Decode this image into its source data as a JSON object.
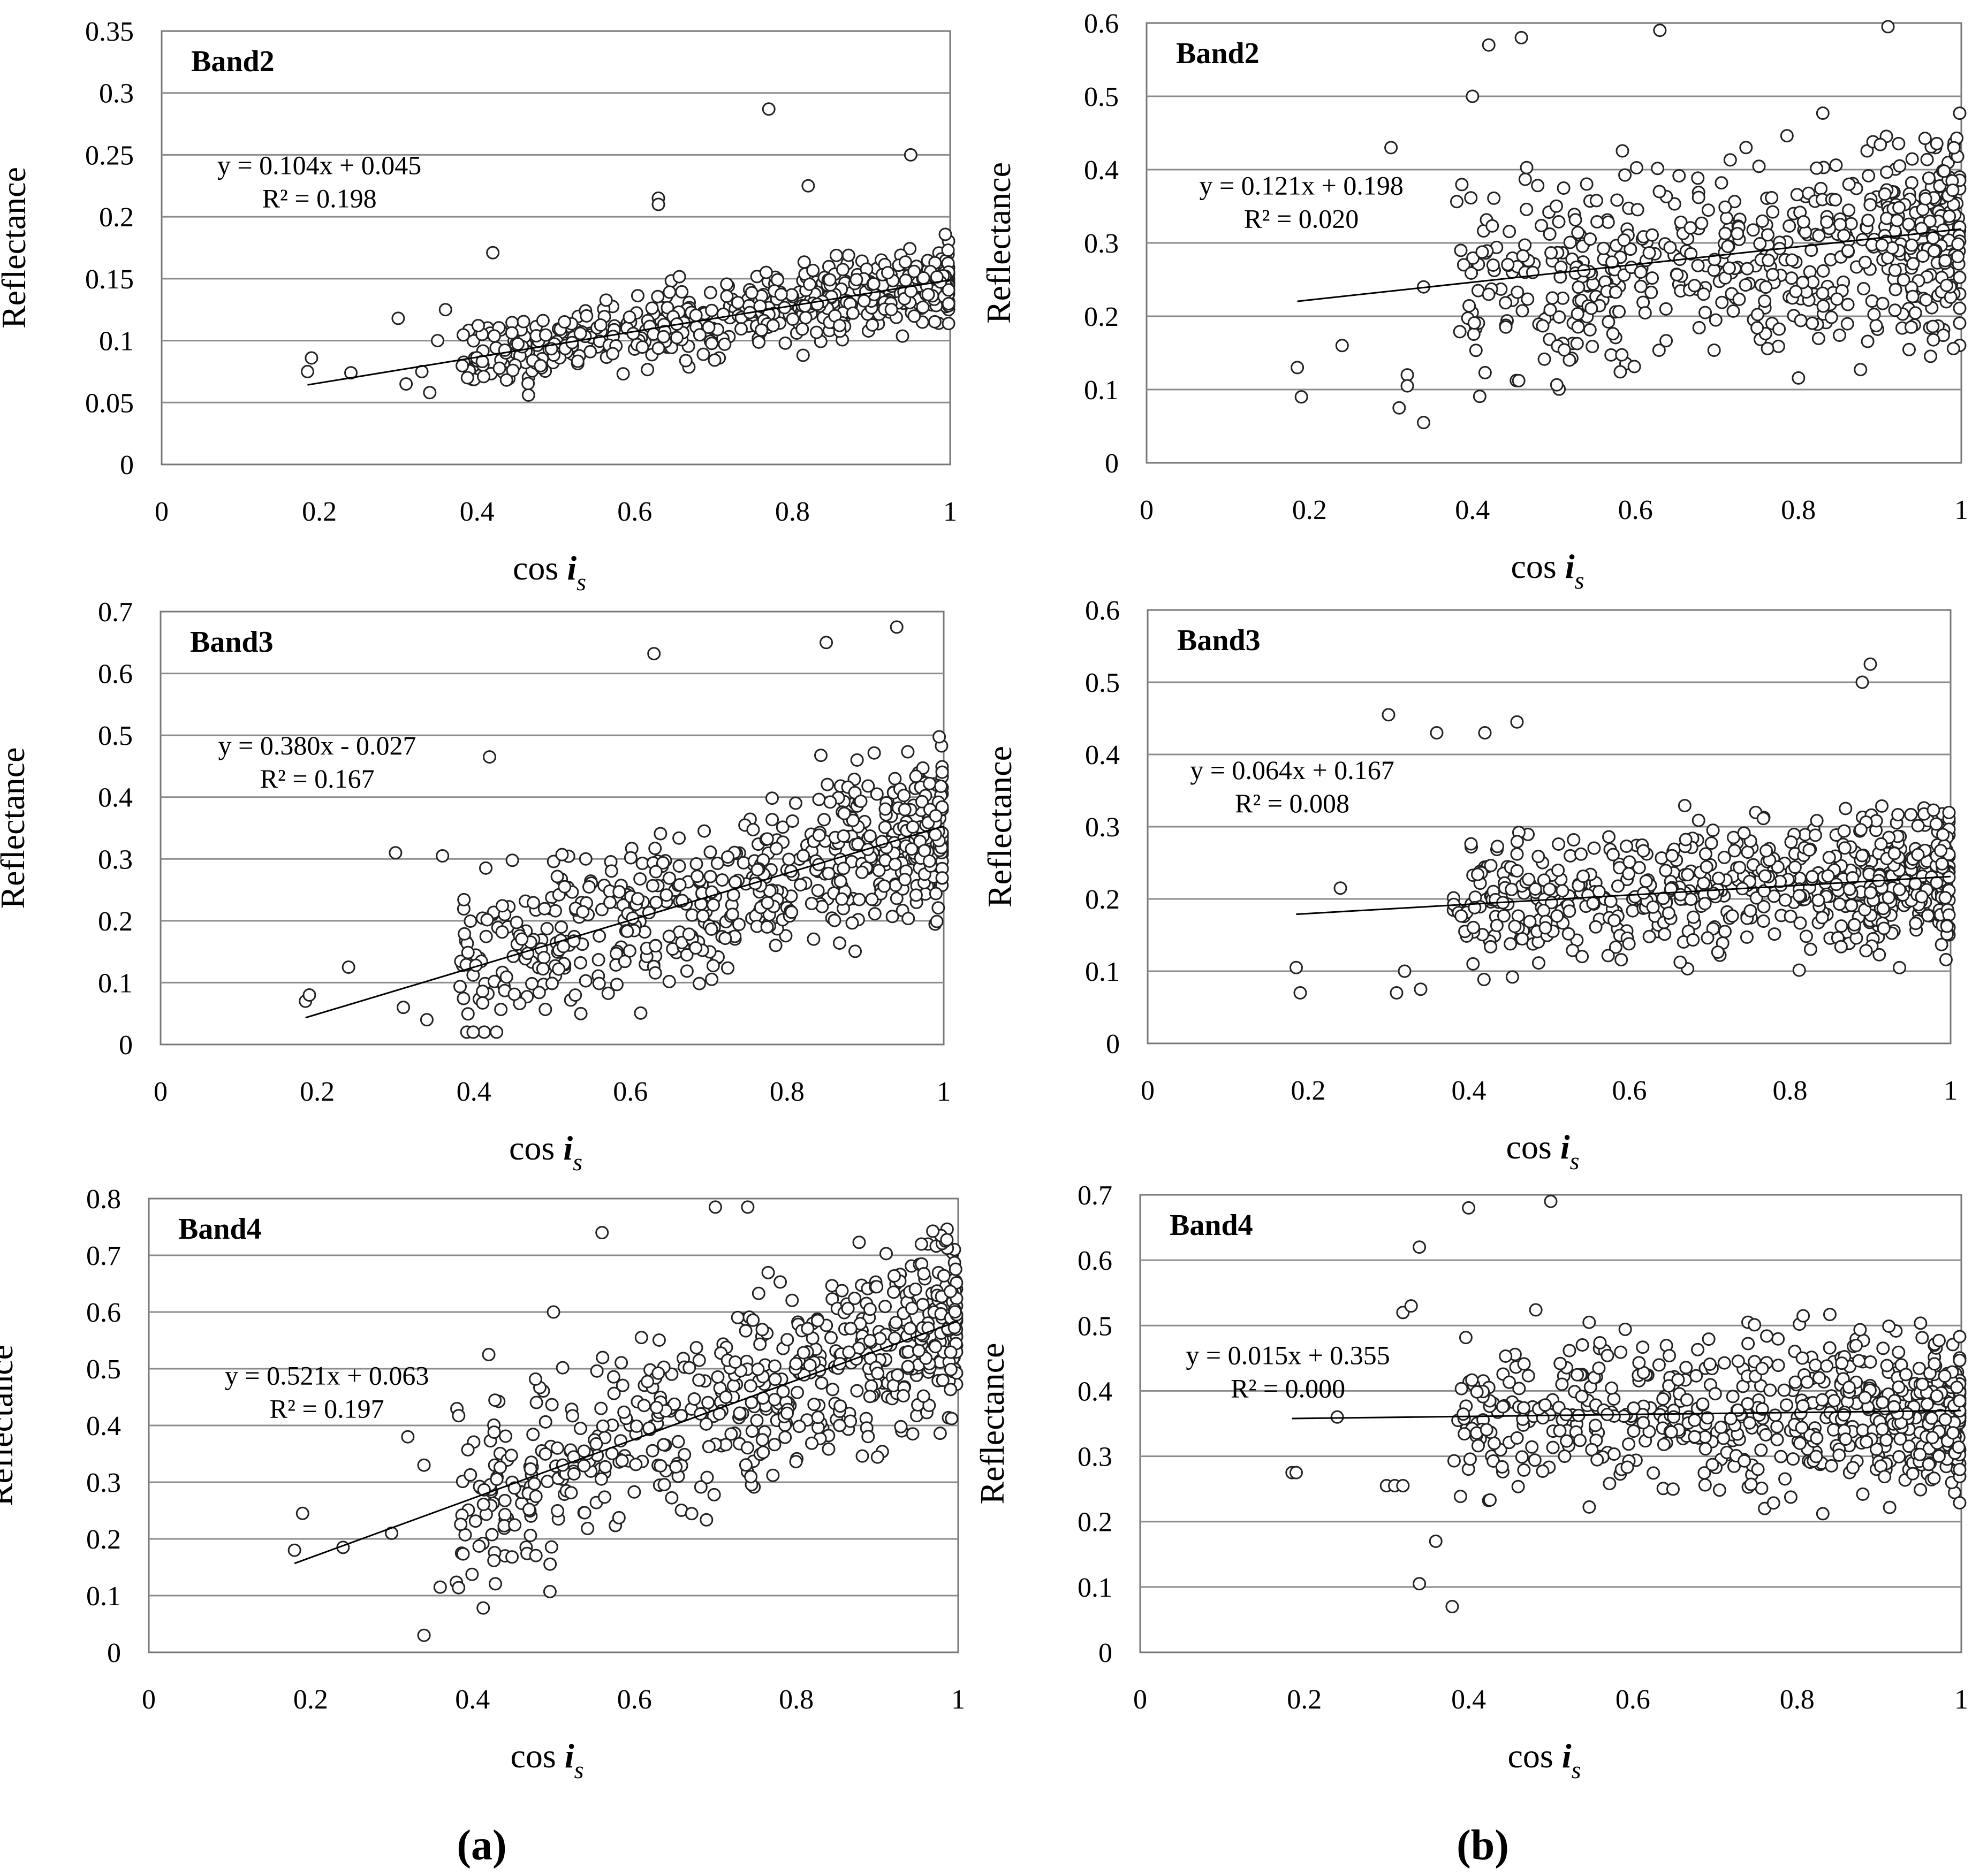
{
  "figure": {
    "panel_labels": [
      "a",
      "b"
    ]
  },
  "chart_data": [
    {
      "id": "a-band2",
      "type": "scatter",
      "column": "a",
      "row": 0,
      "title": "Band2",
      "xlabel": "cos",
      "xlabel_sub": "s",
      "xlabel_var": "i",
      "ylabel": "Reflectance",
      "xlim": [
        0,
        1
      ],
      "ylim": [
        0,
        0.35
      ],
      "xticks": [
        "0",
        "0.2",
        "0.4",
        "0.6",
        "0.8",
        "1"
      ],
      "yticks": [
        "0",
        "0.05",
        "0.1",
        "0.15",
        "0.2",
        "0.25",
        "0.3",
        "0.35"
      ],
      "equation": "y = 0.104x + 0.045",
      "r2": "R² = 0.198",
      "trend": {
        "slope": 0.104,
        "intercept": 0.045,
        "x_range": [
          0.185,
          1
        ]
      },
      "cloud": {
        "n": 560,
        "noise": 0.035,
        "min": 0.055,
        "max": 0.225,
        "seed": 11
      },
      "points": [
        [
          0.19,
          0.086
        ],
        [
          0.185,
          0.075
        ],
        [
          0.24,
          0.074
        ],
        [
          0.3,
          0.118
        ],
        [
          0.31,
          0.065
        ],
        [
          0.33,
          0.075
        ],
        [
          0.34,
          0.058
        ],
        [
          0.35,
          0.1
        ],
        [
          0.36,
          0.125
        ],
        [
          0.42,
          0.171
        ],
        [
          0.77,
          0.287
        ],
        [
          0.95,
          0.25
        ],
        [
          0.63,
          0.215
        ],
        [
          0.63,
          0.21
        ],
        [
          0.82,
          0.225
        ]
      ]
    },
    {
      "id": "a-band3",
      "type": "scatter",
      "column": "a",
      "row": 1,
      "title": "Band3",
      "xlabel": "cos",
      "xlabel_sub": "s",
      "xlabel_var": "i",
      "ylabel": "Reflectance",
      "xlim": [
        0,
        1
      ],
      "ylim": [
        0,
        0.7
      ],
      "xticks": [
        "0",
        "0.2",
        "0.4",
        "0.6",
        "0.8",
        "1"
      ],
      "yticks": [
        "0",
        "0.1",
        "0.2",
        "0.3",
        "0.4",
        "0.5",
        "0.6",
        "0.7"
      ],
      "equation": "y = 0.380x - 0.027",
      "r2": "R² = 0.167",
      "trend": {
        "slope": 0.38,
        "intercept": -0.027,
        "x_range": [
          0.185,
          1
        ]
      },
      "cloud": {
        "n": 600,
        "noise": 0.15,
        "min": 0.02,
        "max": 0.66,
        "seed": 22
      },
      "points": [
        [
          0.185,
          0.07
        ],
        [
          0.19,
          0.08
        ],
        [
          0.24,
          0.125
        ],
        [
          0.3,
          0.31
        ],
        [
          0.36,
          0.305
        ],
        [
          0.42,
          0.465
        ],
        [
          0.63,
          0.632
        ],
        [
          0.94,
          0.675
        ],
        [
          0.31,
          0.06
        ],
        [
          0.34,
          0.04
        ],
        [
          0.85,
          0.65
        ]
      ]
    },
    {
      "id": "a-band4",
      "type": "scatter",
      "column": "a",
      "row": 2,
      "title": "Band4",
      "xlabel": "cos",
      "xlabel_sub": "s",
      "xlabel_var": "i",
      "ylabel": "Reflectance",
      "xlim": [
        0,
        1
      ],
      "ylim": [
        0,
        0.8
      ],
      "xticks": [
        "0",
        "0.2",
        "0.4",
        "0.6",
        "0.8",
        "1"
      ],
      "yticks": [
        "0",
        "0.1",
        "0.2",
        "0.3",
        "0.4",
        "0.5",
        "0.6",
        "0.7",
        "0.8"
      ],
      "equation": "y = 0.521x + 0.063",
      "r2": "R² = 0.197",
      "trend": {
        "slope": 0.521,
        "intercept": 0.063,
        "x_range": [
          0.18,
          1
        ]
      },
      "cloud": {
        "n": 600,
        "noise": 0.19,
        "min": 0.03,
        "max": 0.79,
        "seed": 33
      },
      "points": [
        [
          0.18,
          0.18
        ],
        [
          0.19,
          0.245
        ],
        [
          0.24,
          0.185
        ],
        [
          0.3,
          0.21
        ],
        [
          0.32,
          0.38
        ],
        [
          0.34,
          0.33
        ],
        [
          0.34,
          0.03
        ],
        [
          0.36,
          0.115
        ],
        [
          0.42,
          0.525
        ],
        [
          0.5,
          0.6
        ],
        [
          0.56,
          0.74
        ],
        [
          0.7,
          0.785
        ],
        [
          0.74,
          0.785
        ]
      ]
    },
    {
      "id": "b-band2",
      "type": "scatter",
      "column": "b",
      "row": 0,
      "title": "Band2",
      "xlabel": "cos",
      "xlabel_sub": "s",
      "xlabel_var": "i",
      "ylabel": "Reflectance",
      "xlim": [
        0,
        1
      ],
      "ylim": [
        0,
        0.6
      ],
      "xticks": [
        "0",
        "0.2",
        "0.4",
        "0.6",
        "0.8",
        "1"
      ],
      "yticks": [
        "0",
        "0.1",
        "0.2",
        "0.3",
        "0.4",
        "0.5",
        "0.6"
      ],
      "equation": "y = 0.121x + 0.198",
      "r2": "R² = 0.020",
      "trend": {
        "slope": 0.121,
        "intercept": 0.198,
        "x_range": [
          0.185,
          1
        ]
      },
      "cloud": {
        "n": 600,
        "noise": 0.16,
        "min": 0.04,
        "max": 0.59,
        "seed": 44
      },
      "points": [
        [
          0.185,
          0.13
        ],
        [
          0.19,
          0.09
        ],
        [
          0.24,
          0.16
        ],
        [
          0.3,
          0.43
        ],
        [
          0.31,
          0.075
        ],
        [
          0.32,
          0.12
        ],
        [
          0.32,
          0.105
        ],
        [
          0.34,
          0.24
        ],
        [
          0.34,
          0.055
        ],
        [
          0.4,
          0.5
        ],
        [
          0.42,
          0.57
        ],
        [
          0.46,
          0.58
        ],
        [
          0.63,
          0.59
        ],
        [
          0.91,
          0.595
        ]
      ]
    },
    {
      "id": "b-band3",
      "type": "scatter",
      "column": "b",
      "row": 1,
      "title": "Band3",
      "xlabel": "cos",
      "xlabel_sub": "s",
      "xlabel_var": "i",
      "ylabel": "Reflectance",
      "xlim": [
        0,
        1
      ],
      "ylim": [
        0,
        0.6
      ],
      "xticks": [
        "0",
        "0.2",
        "0.4",
        "0.6",
        "0.8",
        "1"
      ],
      "yticks": [
        "0",
        "0.1",
        "0.2",
        "0.3",
        "0.4",
        "0.5",
        "0.6"
      ],
      "equation": "y = 0.064x + 0.167",
      "r2": "R² = 0.008",
      "trend": {
        "slope": 0.064,
        "intercept": 0.167,
        "x_range": [
          0.185,
          1
        ]
      },
      "cloud": {
        "n": 620,
        "noise": 0.11,
        "min": 0.01,
        "max": 0.47,
        "seed": 55
      },
      "points": [
        [
          0.185,
          0.105
        ],
        [
          0.19,
          0.07
        ],
        [
          0.24,
          0.215
        ],
        [
          0.3,
          0.455
        ],
        [
          0.31,
          0.07
        ],
        [
          0.32,
          0.1
        ],
        [
          0.34,
          0.075
        ],
        [
          0.36,
          0.43
        ],
        [
          0.42,
          0.43
        ],
        [
          0.46,
          0.445
        ],
        [
          0.89,
          0.5
        ],
        [
          0.9,
          0.525
        ]
      ]
    },
    {
      "id": "b-band4",
      "type": "scatter",
      "column": "b",
      "row": 2,
      "title": "Band4",
      "xlabel": "cos",
      "xlabel_sub": "s",
      "xlabel_var": "i",
      "ylabel": "Reflectance",
      "xlim": [
        0,
        1
      ],
      "ylim": [
        0,
        0.7
      ],
      "xticks": [
        "0",
        "0.2",
        "0.4",
        "0.6",
        "0.8",
        "1"
      ],
      "yticks": [
        "0",
        "0.1",
        "0.2",
        "0.3",
        "0.4",
        "0.5",
        "0.6",
        "0.7"
      ],
      "equation": "y = 0.015x + 0.355",
      "r2": "R² = 0.000",
      "trend": {
        "slope": 0.015,
        "intercept": 0.355,
        "x_range": [
          0.185,
          1
        ]
      },
      "cloud": {
        "n": 620,
        "noise": 0.145,
        "min": 0.04,
        "max": 0.695,
        "seed": 66
      },
      "points": [
        [
          0.185,
          0.275
        ],
        [
          0.19,
          0.275
        ],
        [
          0.24,
          0.36
        ],
        [
          0.3,
          0.255
        ],
        [
          0.31,
          0.255
        ],
        [
          0.32,
          0.255
        ],
        [
          0.32,
          0.52
        ],
        [
          0.33,
          0.53
        ],
        [
          0.34,
          0.62
        ],
        [
          0.34,
          0.105
        ],
        [
          0.36,
          0.17
        ],
        [
          0.38,
          0.07
        ],
        [
          0.4,
          0.68
        ],
        [
          0.5,
          0.69
        ]
      ]
    }
  ]
}
